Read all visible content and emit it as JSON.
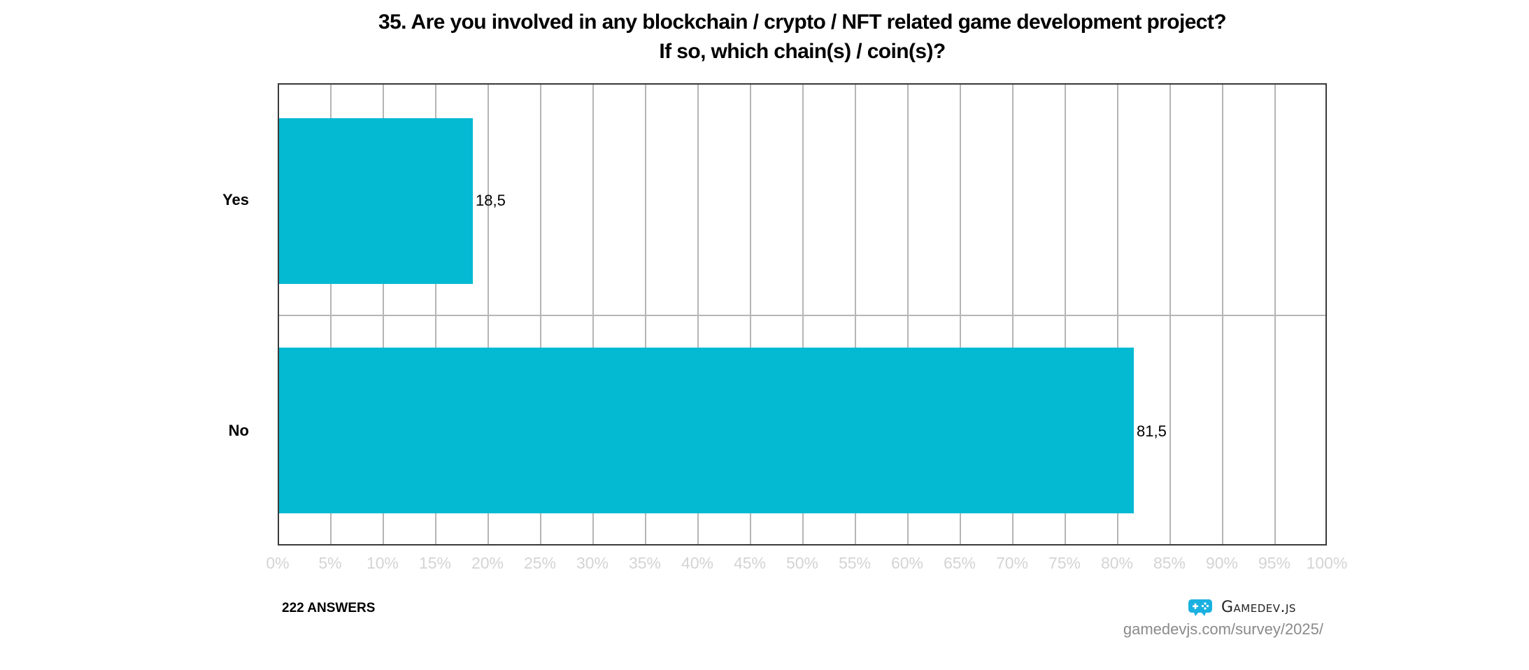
{
  "title": {
    "line1": "35. Are you involved in any blockchain / crypto / NFT related game development project?",
    "line2": "If so, which chain(s) / coin(s)?"
  },
  "colors": {
    "bar": "#04bad2",
    "tick_label": "#d4d4d4",
    "gridline": "#b5b5b5",
    "border": "#3a3a3a"
  },
  "chart_data": {
    "type": "bar",
    "orientation": "horizontal",
    "title": "35. Are you involved in any blockchain / crypto / NFT related game development project? If so, which chain(s) / coin(s)?",
    "categories": [
      "Yes",
      "No"
    ],
    "values": [
      18.5,
      81.5
    ],
    "value_labels": [
      "18,5",
      "81,5"
    ],
    "xlabel": "",
    "ylabel": "",
    "xlim": [
      0,
      100
    ],
    "x_ticks": [
      "0%",
      "5%",
      "10%",
      "15%",
      "20%",
      "25%",
      "30%",
      "35%",
      "40%",
      "45%",
      "50%",
      "55%",
      "60%",
      "65%",
      "70%",
      "75%",
      "80%",
      "85%",
      "90%",
      "95%",
      "100%"
    ],
    "grid": true,
    "legend": null
  },
  "footer": {
    "answers": "222 ANSWERS",
    "brand": "Gamedev.js",
    "url": "gamedevjs.com/survey/2025/"
  }
}
